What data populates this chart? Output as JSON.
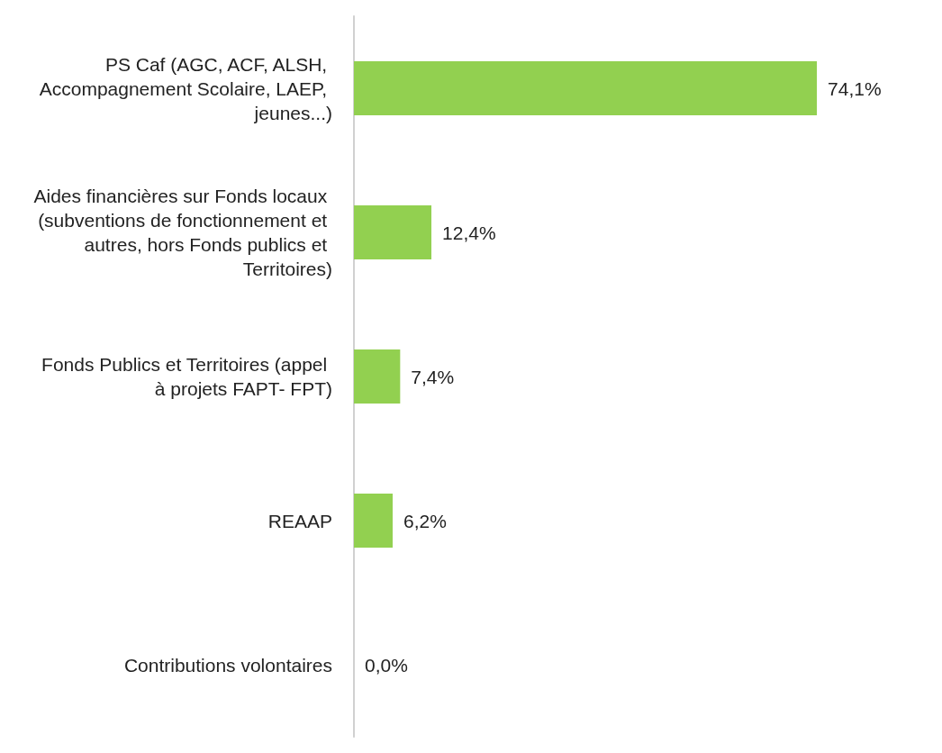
{
  "chart_data": {
    "type": "bar",
    "orientation": "horizontal",
    "categories": [
      "PS Caf (AGC, ACF, ALSH, Accompagnement Scolaire, LAEP, jeunes...)",
      "Aides financières sur Fonds locaux (subventions de fonctionnement et autres, hors Fonds publics et Territoires)",
      "Fonds Publics et Territoires (appel à projets FAPT- FPT)",
      "REAAP",
      "Contributions volontaires"
    ],
    "values": [
      74.1,
      12.4,
      7.4,
      6.2,
      0.0
    ],
    "value_labels": [
      "74,1%",
      "12,4%",
      "7,4%",
      "6,2%",
      "0,0%"
    ],
    "color": "#92d050"
  }
}
